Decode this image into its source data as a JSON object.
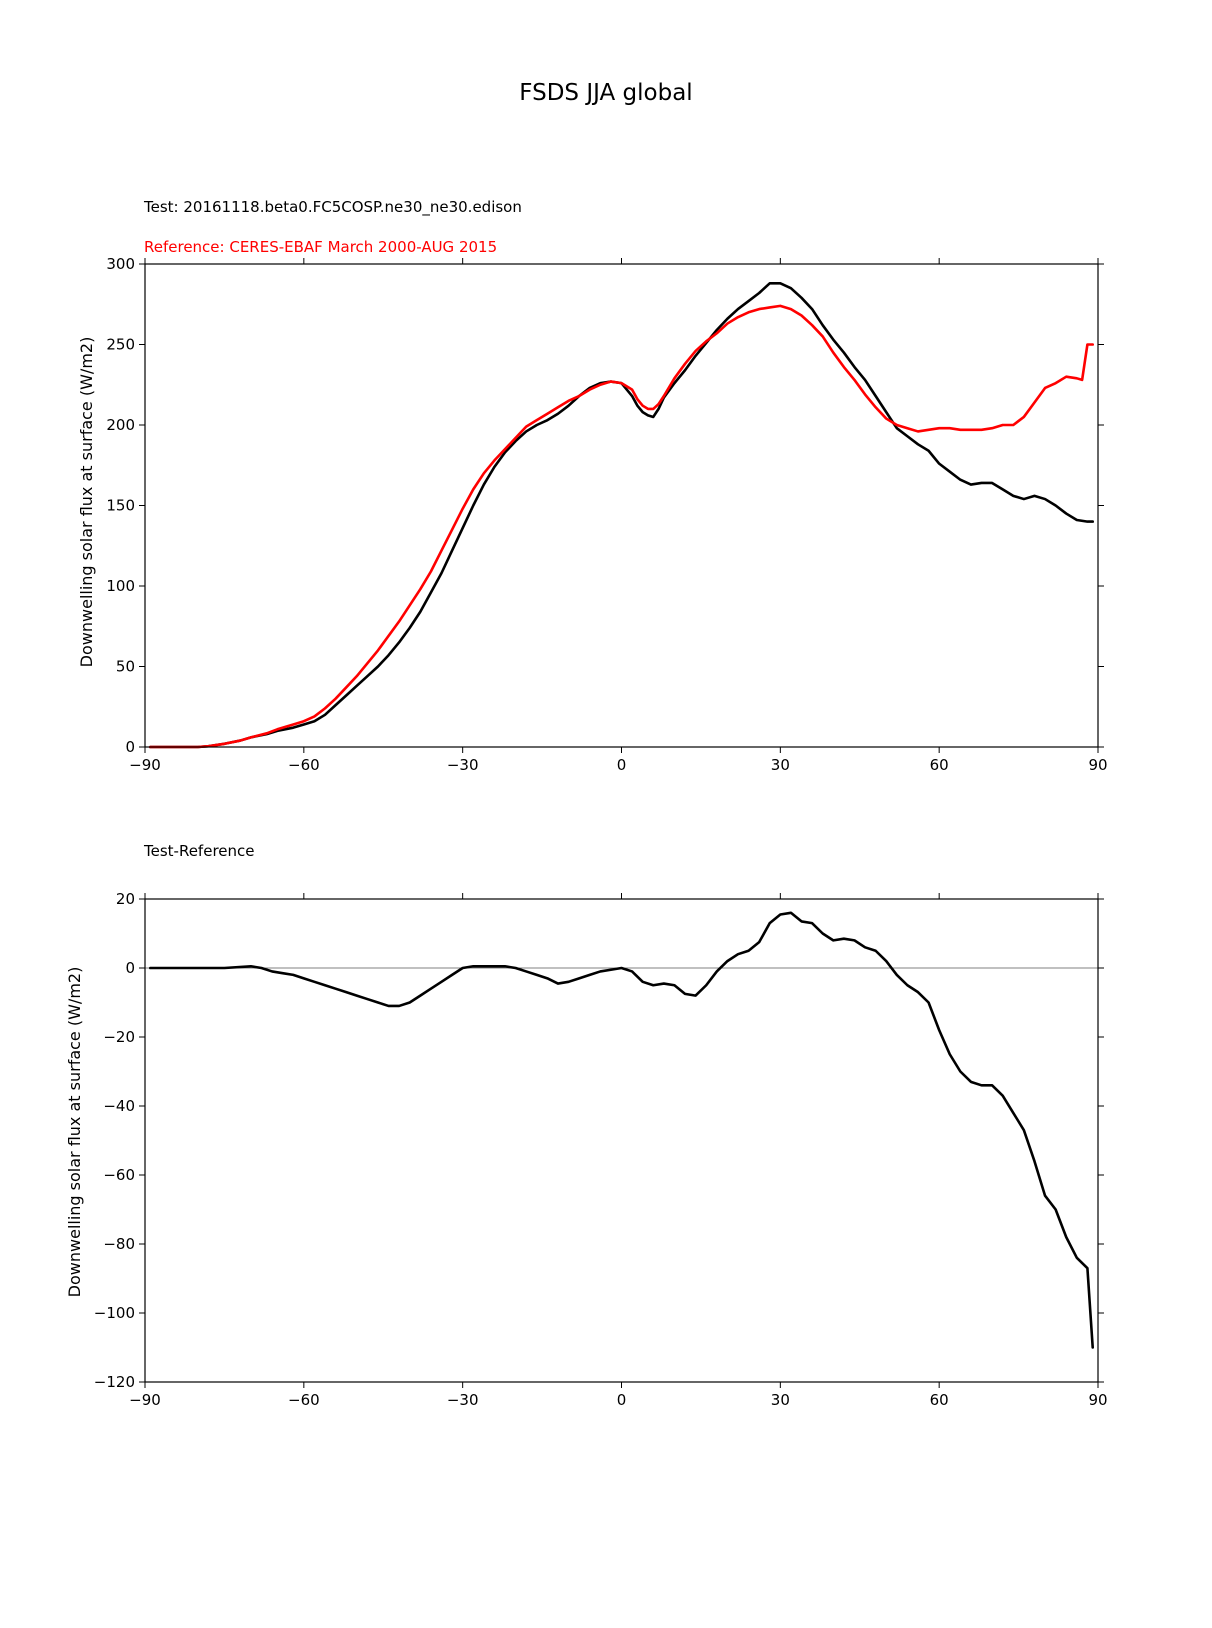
{
  "figure": {
    "title": "FSDS JJA global"
  },
  "chart_data": [
    {
      "type": "line",
      "test_label": "Test: 20161118.beta0.FC5COSP.ne30_ne30.edison",
      "reference_label": "Reference: CERES-EBAF March 2000-AUG 2015",
      "xlabel": "",
      "ylabel": "Downwelling solar flux at surface (W/m2)",
      "xlim": [
        -90,
        90
      ],
      "ylim": [
        0,
        300
      ],
      "xticks": [
        -90,
        -60,
        -30,
        0,
        30,
        60,
        90
      ],
      "yticks": [
        0,
        50,
        100,
        150,
        200,
        250,
        300
      ],
      "grid": false,
      "series": [
        {
          "color": "#000000",
          "x": [
            -89,
            -85,
            -80,
            -78,
            -75,
            -72,
            -70,
            -67,
            -65,
            -62,
            -60,
            -58,
            -56,
            -54,
            -52,
            -50,
            -48,
            -46,
            -44,
            -42,
            -40,
            -38,
            -36,
            -34,
            -32,
            -30,
            -28,
            -26,
            -24,
            -22,
            -20,
            -18,
            -16,
            -14,
            -12,
            -10,
            -8,
            -6,
            -4,
            -2,
            0,
            2,
            3,
            4,
            5,
            6,
            7,
            8,
            10,
            12,
            14,
            16,
            18,
            20,
            22,
            24,
            26,
            28,
            30,
            32,
            34,
            36,
            38,
            40,
            42,
            44,
            46,
            48,
            50,
            52,
            54,
            56,
            58,
            60,
            62,
            64,
            66,
            68,
            70,
            72,
            74,
            76,
            78,
            80,
            82,
            84,
            86,
            88,
            89
          ],
          "y": [
            0,
            0,
            0,
            0.5,
            2,
            4,
            6,
            8,
            10,
            12,
            14,
            16,
            20,
            26,
            32,
            38,
            44,
            50,
            57,
            65,
            74,
            84,
            96,
            108,
            122,
            136,
            150,
            163,
            174,
            183,
            190,
            196,
            200,
            203,
            207,
            212,
            218,
            223,
            226,
            227,
            226,
            218,
            212,
            208,
            206,
            205,
            210,
            217,
            226,
            234,
            243,
            251,
            259,
            266,
            272,
            277,
            282,
            288,
            288,
            285,
            279,
            272,
            262,
            253,
            245,
            236,
            228,
            218,
            208,
            198,
            193,
            188,
            184,
            176,
            171,
            166,
            163,
            164,
            164,
            160,
            156,
            154,
            156,
            154,
            150,
            145,
            141,
            140,
            140
          ]
        },
        {
          "color": "#ff0000",
          "x": [
            -89,
            -85,
            -80,
            -78,
            -75,
            -72,
            -70,
            -67,
            -65,
            -62,
            -60,
            -58,
            -56,
            -54,
            -52,
            -50,
            -48,
            -46,
            -44,
            -42,
            -40,
            -38,
            -36,
            -34,
            -32,
            -30,
            -28,
            -26,
            -24,
            -22,
            -20,
            -18,
            -16,
            -14,
            -12,
            -10,
            -8,
            -6,
            -4,
            -2,
            0,
            2,
            3,
            4,
            5,
            6,
            7,
            8,
            10,
            12,
            14,
            16,
            18,
            20,
            22,
            24,
            26,
            28,
            30,
            32,
            34,
            36,
            38,
            40,
            42,
            44,
            46,
            48,
            50,
            52,
            54,
            56,
            58,
            60,
            62,
            64,
            66,
            68,
            70,
            72,
            74,
            76,
            78,
            80,
            82,
            84,
            86,
            87,
            88,
            89
          ],
          "y": [
            0,
            0,
            0,
            0.5,
            2,
            4,
            6,
            8.5,
            11,
            14,
            16,
            19,
            24,
            30,
            37,
            44,
            52,
            60,
            69,
            78,
            88,
            98,
            109,
            122,
            135,
            148,
            160,
            170,
            178,
            185,
            192,
            199,
            203,
            207,
            211,
            215,
            218,
            222,
            225,
            227,
            226,
            222,
            216,
            212,
            210,
            210,
            213,
            218,
            229,
            238,
            246,
            252,
            257,
            263,
            267,
            270,
            272,
            273,
            274,
            272,
            268,
            262,
            255,
            245,
            236,
            228,
            219,
            211,
            204,
            200,
            198,
            196,
            197,
            198,
            198,
            197,
            197,
            197,
            198,
            200,
            200,
            205,
            214,
            223,
            226,
            230,
            229,
            228,
            250,
            250
          ]
        }
      ]
    },
    {
      "type": "line",
      "title": "Test-Reference",
      "xlabel": "",
      "ylabel": "Downwelling solar flux at surface (W/m2)",
      "xlim": [
        -90,
        90
      ],
      "ylim": [
        -120,
        20
      ],
      "xticks": [
        -90,
        -60,
        -30,
        0,
        30,
        60,
        90
      ],
      "yticks": [
        -120,
        -100,
        -80,
        -60,
        -40,
        -20,
        0,
        20
      ],
      "zero_line": true,
      "grid": false,
      "series": [
        {
          "color": "#000000",
          "x": [
            -89,
            -85,
            -80,
            -75,
            -70,
            -68,
            -66,
            -64,
            -62,
            -60,
            -58,
            -56,
            -54,
            -52,
            -50,
            -48,
            -46,
            -44,
            -42,
            -40,
            -38,
            -36,
            -34,
            -32,
            -30,
            -28,
            -26,
            -24,
            -22,
            -20,
            -18,
            -16,
            -14,
            -12,
            -10,
            -8,
            -6,
            -4,
            -2,
            0,
            2,
            4,
            6,
            8,
            10,
            12,
            14,
            16,
            18,
            20,
            22,
            24,
            26,
            28,
            30,
            32,
            34,
            36,
            38,
            40,
            42,
            44,
            46,
            48,
            50,
            52,
            54,
            56,
            58,
            60,
            62,
            64,
            66,
            68,
            70,
            72,
            74,
            76,
            78,
            80,
            82,
            84,
            86,
            88,
            89
          ],
          "y": [
            0,
            0,
            0,
            0,
            0.5,
            0,
            -1,
            -1.5,
            -2,
            -3,
            -4,
            -5,
            -6,
            -7,
            -8,
            -9,
            -10,
            -11,
            -11,
            -10,
            -8,
            -6,
            -4,
            -2,
            0,
            0.5,
            0.5,
            0.5,
            0.5,
            0,
            -1,
            -2,
            -3,
            -4.5,
            -4,
            -3,
            -2,
            -1,
            -0.5,
            0,
            -1,
            -4,
            -5,
            -4.5,
            -5,
            -7.5,
            -8,
            -5,
            -1,
            2,
            4,
            5,
            7.5,
            13,
            15.5,
            16,
            13.5,
            13,
            10,
            8,
            8.5,
            8,
            6,
            5,
            2,
            -2,
            -5,
            -7,
            -10,
            -18,
            -25,
            -30,
            -33,
            -34,
            -34,
            -37,
            -42,
            -47,
            -56,
            -66,
            -70,
            -78,
            -84,
            -87,
            -110
          ]
        }
      ]
    }
  ]
}
